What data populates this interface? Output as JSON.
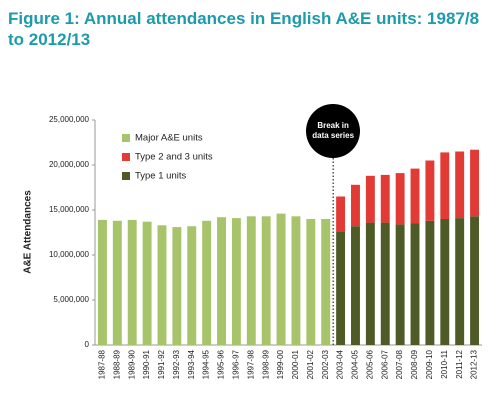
{
  "chart_data": {
    "type": "bar",
    "title": "Figure 1: Annual attendances in English A&E units: 1987/8 to 2012/13",
    "y_label": "A&E Attendances",
    "annotation": "Break in data series",
    "stacked": true,
    "grid": false,
    "categories": [
      "1987-88",
      "1988-89",
      "1989-90",
      "1990-91",
      "1991-92",
      "1992-93",
      "1993-94",
      "1994-95",
      "1995-96",
      "1996-97",
      "1997-98",
      "1998-99",
      "1999-00",
      "2000-01",
      "2001-02",
      "2002-03",
      "2003-04",
      "2004-05",
      "2005-06",
      "2006-07",
      "2007-08",
      "2008-09",
      "2009-10",
      "2010-11",
      "2011-12",
      "2012-13"
    ],
    "series": [
      {
        "name": "Major A&E units",
        "color": "#a8c46a",
        "values": [
          13900000,
          13800000,
          13900000,
          13700000,
          13300000,
          13100000,
          13200000,
          13800000,
          14200000,
          14100000,
          14300000,
          14300000,
          14600000,
          14300000,
          14000000,
          14000000,
          null,
          null,
          null,
          null,
          null,
          null,
          null,
          null,
          null,
          null
        ]
      },
      {
        "name": "Type 2 and 3 units",
        "color": "#e23b36",
        "values": [
          null,
          null,
          null,
          null,
          null,
          null,
          null,
          null,
          null,
          null,
          null,
          null,
          null,
          null,
          null,
          null,
          3900000,
          4600000,
          5200000,
          5300000,
          5700000,
          6100000,
          6700000,
          7400000,
          7400000,
          7400000
        ]
      },
      {
        "name": "Type 1 units",
        "color": "#4f5b27",
        "values": [
          null,
          null,
          null,
          null,
          null,
          null,
          null,
          null,
          null,
          null,
          null,
          null,
          null,
          null,
          null,
          null,
          12600000,
          13200000,
          13600000,
          13600000,
          13400000,
          13500000,
          13800000,
          14000000,
          14100000,
          14300000
        ]
      }
    ],
    "ylim": [
      0,
      25000000
    ],
    "yticks": [
      0,
      {
        "value": 5000000,
        "label": "5,000,000"
      },
      {
        "value": 10000000,
        "label": "10,000,000"
      },
      {
        "value": 15000000,
        "label": "15,000,000"
      },
      {
        "value": 20000000,
        "label": "20,000,000"
      },
      {
        "value": 25000000,
        "label": "25,000,000"
      }
    ]
  }
}
